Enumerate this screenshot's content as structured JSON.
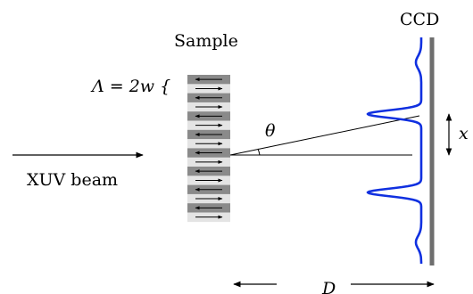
{
  "labels": {
    "sample": "Sample",
    "ccd": "CCD",
    "period_eq": "Λ = 2w  {",
    "theta": "θ",
    "x": "x",
    "beam": "XUV beam",
    "distance": "D"
  },
  "colors": {
    "ink": "#000000",
    "domain_gray": "#8a8a8a",
    "domain_light": "#e4e4e4",
    "detector": "#6e6e6e",
    "profile": "#1030e0"
  },
  "sample": {
    "domain_count": 16,
    "arrow_directions": [
      "left",
      "right",
      "left",
      "right",
      "left",
      "right",
      "left",
      "right",
      "left",
      "right",
      "left",
      "right",
      "left",
      "right",
      "left",
      "right"
    ]
  }
}
